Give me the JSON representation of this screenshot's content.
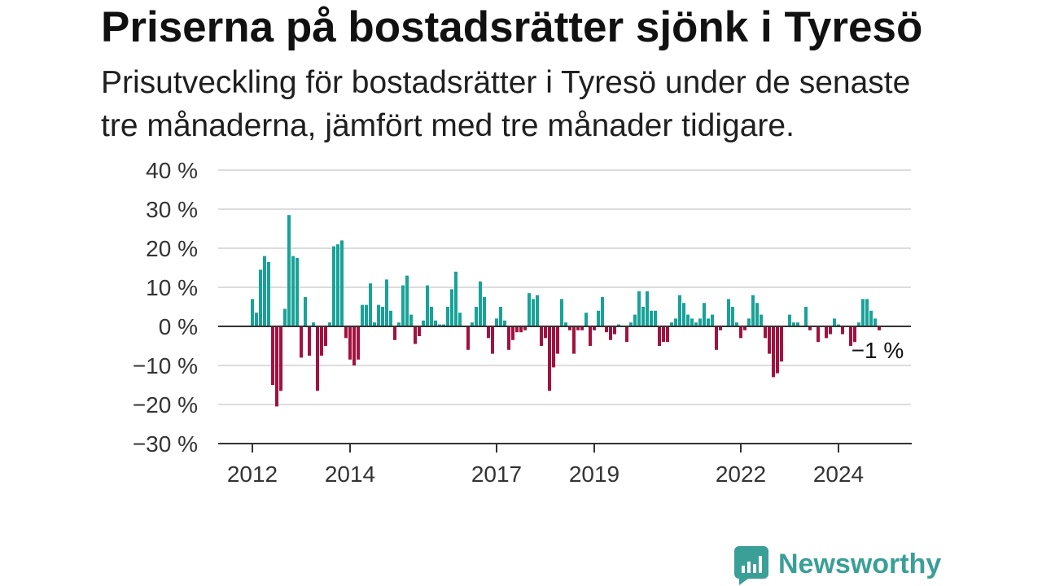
{
  "chart_data": {
    "type": "bar",
    "title": "Priserna på bostadsrätter sjönk i Tyresö",
    "subtitle": "Prisutveckling för bostadsrätter i Tyresö under de senaste tre månaderna, jämfört med tre månader tidigare.",
    "x": [
      "2012-01",
      "2012-02",
      "2012-03",
      "2012-04",
      "2012-05",
      "2012-06",
      "2012-07",
      "2012-08",
      "2012-09",
      "2012-10",
      "2012-11",
      "2012-12",
      "2013-01",
      "2013-02",
      "2013-03",
      "2013-04",
      "2013-05",
      "2013-06",
      "2013-07",
      "2013-08",
      "2013-09",
      "2013-10",
      "2013-11",
      "2013-12",
      "2014-01",
      "2014-02",
      "2014-03",
      "2014-04",
      "2014-05",
      "2014-06",
      "2014-07",
      "2014-08",
      "2014-09",
      "2014-10",
      "2014-11",
      "2014-12",
      "2015-01",
      "2015-02",
      "2015-03",
      "2015-04",
      "2015-05",
      "2015-06",
      "2015-07",
      "2015-08",
      "2015-09",
      "2015-10",
      "2015-11",
      "2015-12",
      "2016-01",
      "2016-02",
      "2016-03",
      "2016-04",
      "2016-05",
      "2016-06",
      "2016-07",
      "2016-08",
      "2016-09",
      "2016-10",
      "2016-11",
      "2016-12",
      "2017-01",
      "2017-02",
      "2017-03",
      "2017-04",
      "2017-05",
      "2017-06",
      "2017-07",
      "2017-08",
      "2017-09",
      "2017-10",
      "2017-11",
      "2017-12",
      "2018-01",
      "2018-02",
      "2018-03",
      "2018-04",
      "2018-05",
      "2018-06",
      "2018-07",
      "2018-08",
      "2018-09",
      "2018-10",
      "2018-11",
      "2018-12",
      "2019-01",
      "2019-02",
      "2019-03",
      "2019-04",
      "2019-05",
      "2019-06",
      "2019-07",
      "2019-08",
      "2019-09",
      "2019-10",
      "2019-11",
      "2019-12",
      "2020-01",
      "2020-02",
      "2020-03",
      "2020-04",
      "2020-05",
      "2020-06",
      "2020-07",
      "2020-08",
      "2020-09",
      "2020-10",
      "2020-11",
      "2020-12",
      "2021-01",
      "2021-02",
      "2021-03",
      "2021-04",
      "2021-05",
      "2021-06",
      "2021-07",
      "2021-08",
      "2021-09",
      "2021-10",
      "2021-11",
      "2021-12",
      "2022-01",
      "2022-02",
      "2022-03",
      "2022-04",
      "2022-05",
      "2022-06",
      "2022-07",
      "2022-08",
      "2022-09",
      "2022-10",
      "2022-11",
      "2022-12",
      "2023-01",
      "2023-02",
      "2023-03",
      "2023-04",
      "2023-05",
      "2023-06",
      "2023-07",
      "2023-08",
      "2023-09",
      "2023-10",
      "2023-11",
      "2023-12",
      "2024-01",
      "2024-02",
      "2024-03",
      "2024-04",
      "2024-05",
      "2024-06",
      "2024-07",
      "2024-08",
      "2024-09",
      "2024-10",
      "2024-11"
    ],
    "values": [
      7,
      3.5,
      14.5,
      18,
      16.5,
      -15,
      -20.5,
      -16.5,
      4.5,
      28.5,
      18,
      17.5,
      -8,
      7.5,
      -7.5,
      1,
      -16.5,
      -7.5,
      -5,
      1,
      20.5,
      21,
      22,
      -3,
      -8.5,
      -10,
      -8.5,
      5.5,
      5.5,
      11,
      1,
      5.5,
      5,
      12,
      4,
      -3.5,
      1,
      10.5,
      13,
      3,
      -4.5,
      -2.5,
      1.5,
      10.5,
      5,
      1.5,
      0.5,
      0.5,
      5,
      9.5,
      14,
      3.5,
      0,
      -6,
      1,
      5,
      11.5,
      7.5,
      -3,
      -7,
      2,
      5,
      1.5,
      -6,
      -3.5,
      -1.5,
      -1.5,
      -1,
      8.5,
      7,
      8,
      -5,
      -3,
      -16.5,
      -10.5,
      -7,
      7,
      1,
      -1,
      -7,
      -1,
      -1,
      3.5,
      -5,
      -1,
      4,
      7.5,
      -1.5,
      -3.5,
      -2,
      0.5,
      0,
      -4,
      1,
      3,
      9,
      5,
      9,
      4,
      4,
      -5,
      -4,
      -4,
      1,
      2,
      8,
      6,
      3,
      2,
      1,
      2,
      6,
      2,
      3,
      -6,
      -1,
      0,
      7,
      5,
      1,
      -3,
      -1,
      2,
      8,
      6,
      3,
      -3,
      -7,
      -13,
      -12,
      -9,
      0,
      3,
      1,
      1,
      0,
      5,
      -1,
      0,
      -4,
      0,
      -3,
      -2,
      2,
      0.5,
      -2,
      0,
      -5,
      -4,
      1,
      7,
      7,
      4,
      2,
      -1
    ],
    "ylim": [
      -30,
      40
    ],
    "yticks": [
      40,
      30,
      20,
      10,
      0,
      -10,
      -20,
      -30
    ],
    "ytick_labels": [
      "40 %",
      "30 %",
      "20 %",
      "10 %",
      "0 %",
      "−10 %",
      "−20 %",
      "−30 %"
    ],
    "xtick_labels": [
      "2012",
      "2014",
      "2017",
      "2019",
      "2022",
      "2024"
    ],
    "annotation": {
      "x": "2024-11",
      "text": "−1 %"
    },
    "grid": true,
    "colors": {
      "positive": "#17a398",
      "negative": "#a3113f",
      "grid": "#dcdcdc",
      "axis": "#333333"
    }
  },
  "logo": {
    "text": "Newsworthy",
    "icon": "bar-chart-bubble-icon",
    "color": "#3a9f97"
  }
}
